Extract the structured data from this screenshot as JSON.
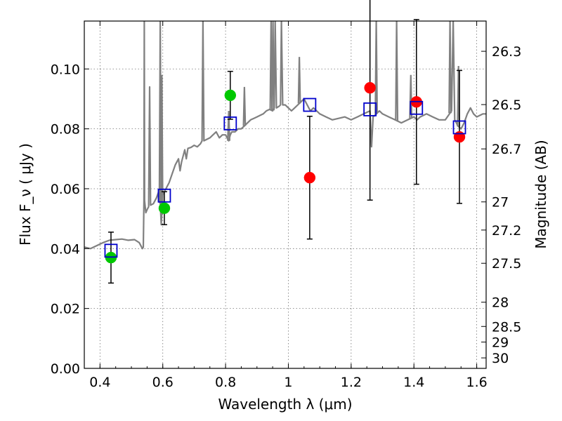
{
  "chart_data": {
    "type": "scatter",
    "xlabel": "Wavelength  λ (μm)",
    "ylabel": "Flux  F_ν  ( μJy )",
    "y2label": "Magnitude (AB)",
    "xlim": [
      0.35,
      1.63
    ],
    "ylim": [
      0.0,
      0.116
    ],
    "grid": true,
    "x_ticks": [
      0.4,
      0.6,
      0.8,
      1.0,
      1.2,
      1.4,
      1.6
    ],
    "x_tick_labels": [
      "0.4",
      "0.6",
      "0.8",
      "1",
      "1.2",
      "1.4",
      "1.6"
    ],
    "y_ticks": [
      0.0,
      0.02,
      0.04,
      0.06,
      0.08,
      0.1
    ],
    "y_tick_labels": [
      "0.00",
      "0.02",
      "0.04",
      "0.06",
      "0.08",
      "0.10"
    ],
    "y2_ticks": [
      {
        "label": "26.3",
        "flux": 0.1059
      },
      {
        "label": "26.5",
        "flux": 0.0881
      },
      {
        "label": "26.7",
        "flux": 0.0733
      },
      {
        "label": "27",
        "flux": 0.0556
      },
      {
        "label": "27.2",
        "flux": 0.0462
      },
      {
        "label": "27.5",
        "flux": 0.0351
      },
      {
        "label": "28",
        "flux": 0.0221
      },
      {
        "label": "28.5",
        "flux": 0.014
      },
      {
        "label": "29",
        "flux": 0.0088
      },
      {
        "label": "30",
        "flux": 0.0035
      }
    ],
    "spectrum_color": "#808080",
    "spectrum": [
      [
        0.35,
        0.0405
      ],
      [
        0.37,
        0.04
      ],
      [
        0.39,
        0.041
      ],
      [
        0.41,
        0.042
      ],
      [
        0.43,
        0.0428
      ],
      [
        0.45,
        0.043
      ],
      [
        0.47,
        0.0432
      ],
      [
        0.49,
        0.0428
      ],
      [
        0.51,
        0.043
      ],
      [
        0.525,
        0.042
      ],
      [
        0.535,
        0.04
      ],
      [
        0.538,
        0.0405
      ],
      [
        0.54,
        0.056
      ],
      [
        0.541,
        0.116
      ],
      [
        0.542,
        0.056
      ],
      [
        0.546,
        0.052
      ],
      [
        0.55,
        0.053
      ],
      [
        0.555,
        0.054
      ],
      [
        0.558,
        0.094
      ],
      [
        0.561,
        0.0545
      ],
      [
        0.57,
        0.055
      ],
      [
        0.58,
        0.057
      ],
      [
        0.59,
        0.06
      ],
      [
        0.595,
        0.048
      ],
      [
        0.6,
        0.058
      ],
      [
        0.62,
        0.062
      ],
      [
        0.63,
        0.065
      ],
      [
        0.64,
        0.068
      ],
      [
        0.65,
        0.07
      ],
      [
        0.655,
        0.066
      ],
      [
        0.66,
        0.069
      ],
      [
        0.67,
        0.073
      ],
      [
        0.675,
        0.07
      ],
      [
        0.68,
        0.0735
      ],
      [
        0.69,
        0.0738
      ],
      [
        0.7,
        0.0745
      ],
      [
        0.71,
        0.074
      ],
      [
        0.72,
        0.075
      ],
      [
        0.725,
        0.076
      ],
      [
        0.728,
        0.116
      ],
      [
        0.731,
        0.076
      ],
      [
        0.74,
        0.0765
      ],
      [
        0.75,
        0.077
      ],
      [
        0.76,
        0.078
      ],
      [
        0.77,
        0.079
      ],
      [
        0.78,
        0.077
      ],
      [
        0.79,
        0.078
      ],
      [
        0.8,
        0.078
      ],
      [
        0.805,
        0.077
      ],
      [
        0.81,
        0.076
      ],
      [
        0.815,
        0.078
      ],
      [
        0.82,
        0.079
      ],
      [
        0.83,
        0.079
      ],
      [
        0.84,
        0.08
      ],
      [
        0.85,
        0.08
      ],
      [
        0.86,
        0.081
      ],
      [
        0.87,
        0.082
      ],
      [
        0.88,
        0.083
      ],
      [
        0.89,
        0.0835
      ],
      [
        0.9,
        0.084
      ],
      [
        0.91,
        0.0845
      ],
      [
        0.92,
        0.085
      ],
      [
        0.93,
        0.086
      ],
      [
        0.94,
        0.0865
      ],
      [
        0.95,
        0.086
      ],
      [
        0.955,
        0.087
      ],
      [
        0.958,
        0.116
      ],
      [
        0.962,
        0.087
      ],
      [
        0.97,
        0.0875
      ],
      [
        0.975,
        0.088
      ],
      [
        0.978,
        0.116
      ],
      [
        0.982,
        0.088
      ],
      [
        0.99,
        0.088
      ],
      [
        1.0,
        0.087
      ],
      [
        1.01,
        0.086
      ],
      [
        1.02,
        0.087
      ],
      [
        1.03,
        0.088
      ],
      [
        1.04,
        0.089
      ],
      [
        1.05,
        0.09
      ],
      [
        1.06,
        0.088
      ],
      [
        1.07,
        0.086
      ],
      [
        1.08,
        0.087
      ],
      [
        1.09,
        0.086
      ],
      [
        1.1,
        0.085
      ],
      [
        1.12,
        0.084
      ],
      [
        1.14,
        0.083
      ],
      [
        1.16,
        0.0835
      ],
      [
        1.18,
        0.084
      ],
      [
        1.2,
        0.083
      ],
      [
        1.22,
        0.084
      ],
      [
        1.24,
        0.085
      ],
      [
        1.26,
        0.086
      ],
      [
        1.265,
        0.074
      ],
      [
        1.27,
        0.084
      ],
      [
        1.28,
        0.085
      ],
      [
        1.29,
        0.086
      ],
      [
        1.3,
        0.085
      ],
      [
        1.32,
        0.084
      ],
      [
        1.34,
        0.083
      ],
      [
        1.36,
        0.082
      ],
      [
        1.38,
        0.083
      ],
      [
        1.4,
        0.084
      ],
      [
        1.41,
        0.083
      ],
      [
        1.42,
        0.084
      ],
      [
        1.44,
        0.085
      ],
      [
        1.46,
        0.084
      ],
      [
        1.48,
        0.083
      ],
      [
        1.5,
        0.083
      ],
      [
        1.52,
        0.086
      ],
      [
        1.525,
        0.116
      ],
      [
        1.53,
        0.083
      ],
      [
        1.54,
        0.081
      ],
      [
        1.55,
        0.08
      ],
      [
        1.56,
        0.082
      ],
      [
        1.57,
        0.085
      ],
      [
        1.58,
        0.087
      ],
      [
        1.59,
        0.085
      ],
      [
        1.6,
        0.084
      ],
      [
        1.62,
        0.085
      ],
      [
        1.63,
        0.085
      ]
    ],
    "lines": [
      {
        "x": 0.592,
        "peak": 0.116
      },
      {
        "x": 0.597,
        "peak": 0.098
      },
      {
        "x": 0.81,
        "peak": 0.086
      },
      {
        "x": 0.86,
        "peak": 0.094
      },
      {
        "x": 0.945,
        "peak": 0.116
      },
      {
        "x": 0.951,
        "peak": 0.116
      },
      {
        "x": 1.035,
        "peak": 0.104
      },
      {
        "x": 1.28,
        "peak": 0.116
      },
      {
        "x": 1.345,
        "peak": 0.116
      },
      {
        "x": 1.39,
        "peak": 0.098
      },
      {
        "x": 1.515,
        "peak": 0.116
      },
      {
        "x": 1.542,
        "peak": 0.101
      }
    ],
    "series": [
      {
        "name": "",
        "marker": "circle",
        "color": "#00c800",
        "points": [
          {
            "x": 0.435,
            "y": 0.037,
            "yerr": 0.0085
          },
          {
            "x": 0.605,
            "y": 0.0535,
            "yerr": 0.0055
          },
          {
            "x": 0.815,
            "y": 0.0912,
            "yerr": 0.008
          }
        ]
      },
      {
        "name": "",
        "marker": "circle",
        "color": "#ff0000",
        "points": [
          {
            "x": 1.068,
            "y": 0.0637,
            "yerr": 0.0205
          },
          {
            "x": 1.26,
            "y": 0.0937,
            "yerr": 0.0375
          },
          {
            "x": 1.408,
            "y": 0.089,
            "yerr": 0.0275
          },
          {
            "x": 1.545,
            "y": 0.0773,
            "yerr": 0.0222
          }
        ]
      },
      {
        "name": "",
        "marker": "square",
        "color": "#0000cc",
        "points": [
          {
            "x": 0.435,
            "y": 0.0393
          },
          {
            "x": 0.605,
            "y": 0.0577
          },
          {
            "x": 0.815,
            "y": 0.0818
          },
          {
            "x": 1.068,
            "y": 0.088
          },
          {
            "x": 1.26,
            "y": 0.0865
          },
          {
            "x": 1.408,
            "y": 0.087
          },
          {
            "x": 1.545,
            "y": 0.0805
          }
        ]
      }
    ]
  }
}
